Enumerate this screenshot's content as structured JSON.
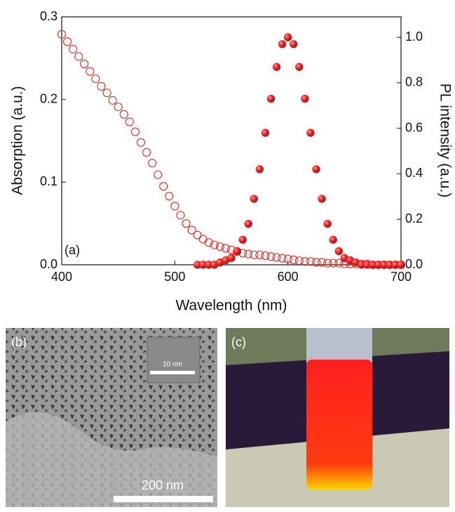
{
  "chart_data": {
    "type": "scatter",
    "panel_label": "(a)",
    "x_label": "Wavelength (nm)",
    "y_label": "Absorption (a.u.)",
    "y2_label": "PL intensity (a.u.)",
    "xlim": [
      400,
      700
    ],
    "xticks": [
      400,
      500,
      600,
      700
    ],
    "ylim": [
      0,
      0.3
    ],
    "yticks": [
      {
        "value": 0,
        "label": "0.0"
      },
      0.1,
      0.2,
      0.3
    ],
    "y2lim": [
      0,
      1.09
    ],
    "y2ticks": [
      {
        "value": 0,
        "label": "0.0"
      },
      0.2,
      0.4,
      0.6,
      0.8,
      {
        "value": 1,
        "label": "1.0"
      }
    ],
    "series": [
      {
        "color": "#e8231f",
        "marker": "open",
        "x": [
          400,
          405,
          410,
          415,
          420,
          425,
          430,
          435,
          440,
          445,
          450,
          455,
          460,
          465,
          470,
          475,
          480,
          485,
          490,
          495,
          500,
          505,
          510,
          515,
          520,
          525,
          530,
          535,
          540,
          545,
          550,
          555,
          560,
          565,
          570,
          575,
          580,
          585,
          590,
          595,
          600,
          605,
          610,
          615,
          620,
          625,
          630,
          635,
          640,
          645,
          650,
          655,
          660,
          665,
          670,
          675,
          680,
          685,
          690,
          695,
          700
        ],
        "values": [
          0.279,
          0.27,
          0.261,
          0.252,
          0.243,
          0.234,
          0.225,
          0.216,
          0.208,
          0.199,
          0.191,
          0.182,
          0.173,
          0.161,
          0.148,
          0.136,
          0.123,
          0.109,
          0.095,
          0.083,
          0.071,
          0.06,
          0.05,
          0.042,
          0.036,
          0.031,
          0.027,
          0.024,
          0.022,
          0.02,
          0.018,
          0.016,
          0.014,
          0.013,
          0.012,
          0.012,
          0.011,
          0.01,
          0.009,
          0.008,
          0.007,
          0.006,
          0.005,
          0.004,
          0.004,
          0.003,
          0.003,
          0.002,
          0.002,
          0.002,
          0.001,
          0.001,
          0.001,
          0.001,
          0.001,
          0,
          0,
          0,
          0,
          0,
          0
        ]
      },
      {
        "color": "#e8231f",
        "marker": "filled",
        "axis": "y2",
        "x": [
          520,
          525,
          530,
          535,
          540,
          545,
          550,
          555,
          560,
          565,
          570,
          575,
          580,
          585,
          590,
          595,
          600,
          605,
          610,
          615,
          620,
          625,
          630,
          635,
          640,
          645,
          650,
          655,
          660,
          665,
          670,
          675,
          680,
          685,
          690,
          695,
          700
        ],
        "values": [
          0,
          0,
          0,
          0,
          0.01,
          0.02,
          0.03,
          0.06,
          0.11,
          0.18,
          0.29,
          0.42,
          0.58,
          0.73,
          0.87,
          0.97,
          1.0,
          0.97,
          0.87,
          0.73,
          0.58,
          0.42,
          0.29,
          0.18,
          0.11,
          0.06,
          0.03,
          0.02,
          0.01,
          0,
          0,
          0,
          0,
          0,
          0,
          0,
          0
        ]
      }
    ]
  },
  "photos": {
    "tem": {
      "label": "(b)",
      "inset_scale": "10 nm",
      "scale": "200 nm"
    },
    "vial": {
      "label": "(c)"
    }
  }
}
